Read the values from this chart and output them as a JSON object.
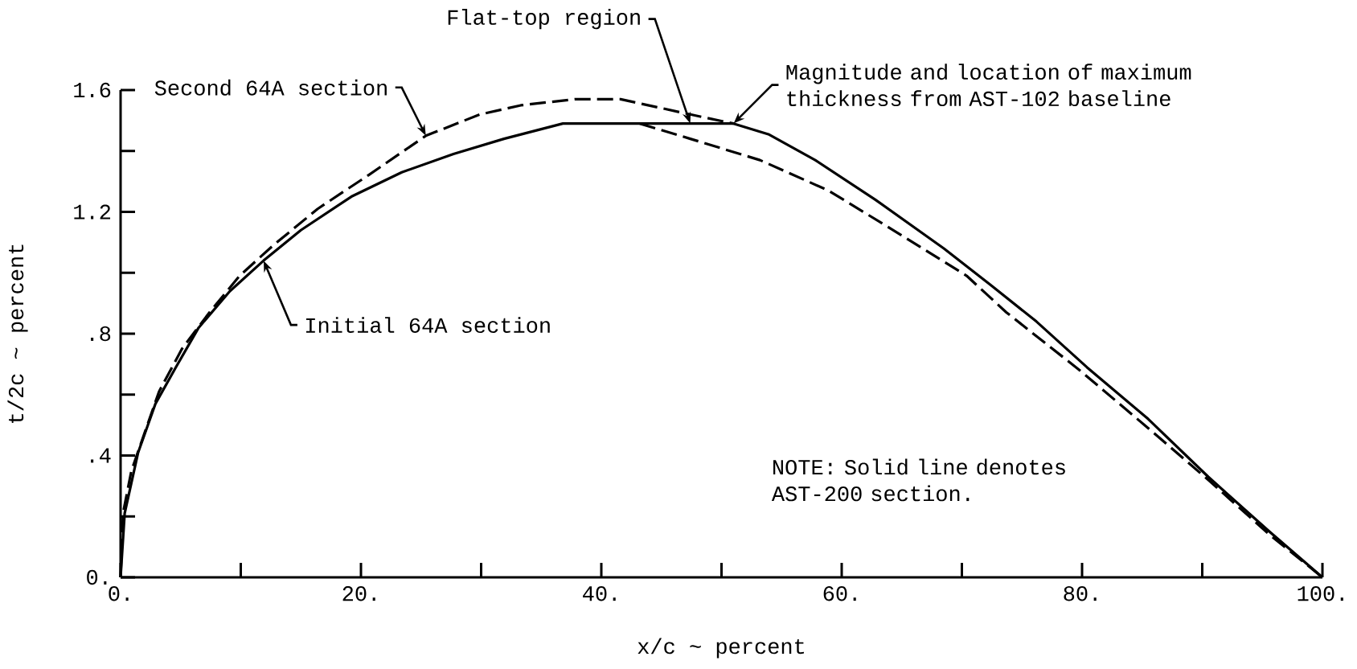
{
  "chart_data": {
    "type": "line",
    "xlabel": "x/c ~ percent",
    "ylabel": "t/2c ~ percent",
    "xlim": [
      0,
      100
    ],
    "ylim": [
      0,
      1.6
    ],
    "xticks": [
      {
        "value": 0,
        "label": "0."
      },
      {
        "value": 20,
        "label": "20."
      },
      {
        "value": 40,
        "label": "40."
      },
      {
        "value": 60,
        "label": "60."
      },
      {
        "value": 80,
        "label": "80."
      },
      {
        "value": 100,
        "label": "100."
      }
    ],
    "yticks": [
      {
        "value": 0,
        "label": "0."
      },
      {
        "value": 0.4,
        "label": ".4"
      },
      {
        "value": 0.8,
        "label": ".8"
      },
      {
        "value": 1.2,
        "label": "1.2"
      },
      {
        "value": 1.6,
        "label": "1.6"
      }
    ],
    "grid": false,
    "marker": "none",
    "series": [
      {
        "color": "#000000",
        "line_style": "solid",
        "x": [
          0,
          0.34,
          1.46,
          2.9,
          4.6,
          6.5,
          9.1,
          11.9,
          15.0,
          19.2,
          23.4,
          27.7,
          31.9,
          36.8,
          40,
          45,
          51.0,
          53.9,
          57.8,
          62.8,
          68.5,
          72.4,
          76.2,
          80.4,
          85.5,
          90.5,
          95.6,
          100
        ],
        "values": [
          0,
          0.21,
          0.41,
          0.57,
          0.69,
          0.82,
          0.94,
          1.04,
          1.14,
          1.25,
          1.33,
          1.39,
          1.44,
          1.49,
          1.49,
          1.49,
          1.49,
          1.455,
          1.37,
          1.24,
          1.08,
          0.96,
          0.84,
          0.69,
          0.52,
          0.33,
          0.15,
          0
        ]
      },
      {
        "color": "#000000",
        "line_style": "dashed",
        "x": [
          43.2,
          47.4,
          53.2,
          58.9,
          64.7,
          70.4,
          73.7,
          79.8,
          85.5,
          90.5,
          95.6,
          100
        ],
        "values": [
          1.49,
          1.44,
          1.37,
          1.27,
          1.13,
          0.99,
          0.87,
          0.68,
          0.49,
          0.32,
          0.14,
          0
        ]
      },
      {
        "color": "#000000",
        "line_style": "dashed",
        "x": [
          0,
          0.2,
          0.9,
          3.2,
          5.1,
          7.4,
          9.9,
          12.7,
          16.4,
          20.6,
          25.4,
          29.9,
          33.3,
          37.8,
          41.6,
          47.4,
          51.0
        ],
        "values": [
          0,
          0.21,
          0.35,
          0.61,
          0.75,
          0.87,
          0.99,
          1.09,
          1.21,
          1.32,
          1.45,
          1.52,
          1.55,
          1.57,
          1.57,
          1.52,
          1.49
        ]
      }
    ],
    "annotations": [
      {
        "text": "Second 64A section",
        "x": 25.4,
        "y": 1.45
      },
      {
        "text": "Initial 64A section",
        "x": 11.9,
        "y": 1.04
      },
      {
        "text": "Flat-top region",
        "x": 47.4,
        "y": 1.49
      },
      {
        "text": "Magnitude and location of maximum thickness from AST-102 baseline",
        "x": 51.0,
        "y": 1.49
      },
      "NOTE: Solid line denotes AST-200 section."
    ]
  }
}
